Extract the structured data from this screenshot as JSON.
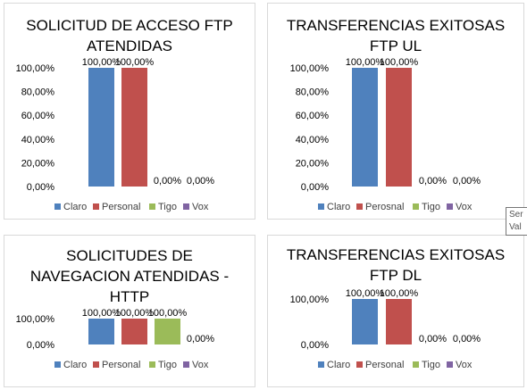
{
  "colors": {
    "claro": "#4f81bd",
    "personal": "#c0504d",
    "tigo": "#9bbb59",
    "vox": "#8064a2"
  },
  "tooltip": {
    "line1": "Ser",
    "line2": "Val"
  },
  "chart_data": [
    {
      "type": "bar",
      "title_lines": [
        "SOLICITUD DE ACCESO FTP",
        "ATENDIDAS"
      ],
      "categories": [
        "Claro",
        "Personal",
        "Tigo",
        "Vox"
      ],
      "values": [
        100,
        100,
        0,
        0
      ],
      "value_labels": [
        "100,00%",
        "100,00%",
        "0,00%",
        "0,00%"
      ],
      "yticks": [
        "0,00%",
        "20,00%",
        "40,00%",
        "60,00%",
        "80,00%",
        "100,00%"
      ],
      "ylim": [
        0,
        100
      ],
      "legend": [
        "Claro",
        "Personal",
        "Tigo",
        "Vox"
      ],
      "legend_position": "bottom"
    },
    {
      "type": "bar",
      "title_lines": [
        "TRANSFERENCIAS EXITOSAS",
        "FTP UL"
      ],
      "categories": [
        "Claro",
        "Perosnal",
        "Tigo",
        "Vox"
      ],
      "values": [
        100,
        100,
        0,
        0
      ],
      "value_labels": [
        "100,00%",
        "100,00%",
        "0,00%",
        "0,00%"
      ],
      "yticks": [
        "0,00%",
        "20,00%",
        "40,00%",
        "60,00%",
        "80,00%",
        "100,00%"
      ],
      "ylim": [
        0,
        100
      ],
      "legend": [
        "Claro",
        "Perosnal",
        "Tigo",
        "Vox"
      ],
      "legend_position": "bottom"
    },
    {
      "type": "bar",
      "title_lines": [
        "SOLICITUDES DE",
        "NAVEGACION ATENDIDAS -",
        "HTTP"
      ],
      "categories": [
        "Claro",
        "Personal",
        "Tigo",
        "Vox"
      ],
      "values": [
        100,
        100,
        100,
        0
      ],
      "value_labels": [
        "100,00%",
        "100,00%",
        "100,00%",
        "0,00%"
      ],
      "yticks": [
        "0,00%",
        "100,00%"
      ],
      "ylim": [
        0,
        100
      ],
      "legend": [
        "Claro",
        "Personal",
        "Tigo",
        "Vox"
      ],
      "legend_position": "bottom"
    },
    {
      "type": "bar",
      "title_lines": [
        "TRANSFERENCIAS EXITOSAS",
        "FTP DL"
      ],
      "categories": [
        "Claro",
        "Personal",
        "Tigo",
        "Vox"
      ],
      "values": [
        100,
        100,
        0,
        0
      ],
      "value_labels": [
        "100,00%",
        "100,00%",
        "0,00%",
        "0,00%"
      ],
      "yticks": [
        "0,00%",
        "100,00%"
      ],
      "ylim": [
        0,
        100
      ],
      "legend": [
        "Claro",
        "Personal",
        "Tigo",
        "Vox"
      ],
      "legend_position": "bottom"
    }
  ]
}
